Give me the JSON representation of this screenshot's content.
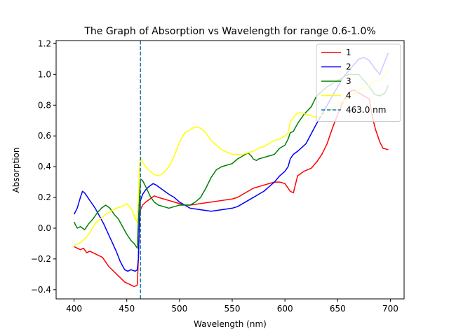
{
  "chart_data": {
    "type": "line",
    "title": "The Graph of Absorption vs Wavelength  for range 0.6-1.0%",
    "xlabel": "Wavelength (nm)",
    "ylabel": "Absorption",
    "xlim": [
      383,
      713
    ],
    "ylim": [
      -0.46,
      1.22
    ],
    "xticks": [
      400,
      450,
      500,
      550,
      600,
      650,
      700
    ],
    "yticks": [
      -0.4,
      -0.2,
      0.0,
      0.2,
      0.4,
      0.6,
      0.8,
      1.0,
      1.2
    ],
    "ytick_labels": [
      "−0.4",
      "−0.2",
      "0.0",
      "0.2",
      "0.4",
      "0.6",
      "0.8",
      "1.0",
      "1.2"
    ],
    "grid": false,
    "legend_position": "top-right",
    "vline": {
      "x": 463.0,
      "label": "463.0 nm",
      "color": "#1f77b4",
      "style": "dashed"
    },
    "series": [
      {
        "name": "1",
        "color": "#ff0000",
        "x": [
          400,
          403,
          406,
          409,
          412,
          415,
          418,
          421,
          424,
          427,
          430,
          433,
          436,
          439,
          442,
          445,
          448,
          451,
          454,
          457,
          460,
          461,
          462,
          463,
          465,
          468,
          472,
          476,
          480,
          485,
          490,
          495,
          500,
          505,
          510,
          520,
          530,
          540,
          550,
          555,
          560,
          565,
          570,
          575,
          580,
          585,
          590,
          595,
          600,
          603,
          605,
          608,
          612,
          618,
          625,
          630,
          635,
          640,
          645,
          650,
          655,
          660,
          665,
          670,
          675,
          680,
          683,
          686,
          690,
          693,
          698
        ],
        "y": [
          -0.12,
          -0.13,
          -0.14,
          -0.13,
          -0.16,
          -0.15,
          -0.16,
          -0.17,
          -0.18,
          -0.19,
          -0.22,
          -0.25,
          -0.27,
          -0.29,
          -0.31,
          -0.33,
          -0.35,
          -0.36,
          -0.37,
          -0.38,
          -0.37,
          -0.2,
          0.05,
          0.12,
          0.15,
          0.17,
          0.19,
          0.21,
          0.2,
          0.19,
          0.18,
          0.17,
          0.16,
          0.15,
          0.15,
          0.16,
          0.17,
          0.18,
          0.19,
          0.2,
          0.22,
          0.24,
          0.26,
          0.27,
          0.28,
          0.29,
          0.3,
          0.3,
          0.29,
          0.26,
          0.24,
          0.23,
          0.34,
          0.37,
          0.39,
          0.43,
          0.48,
          0.55,
          0.65,
          0.74,
          0.82,
          0.88,
          0.9,
          0.88,
          0.86,
          0.84,
          0.72,
          0.64,
          0.56,
          0.52,
          0.51
        ]
      },
      {
        "name": "2",
        "color": "#0000ff",
        "x": [
          400,
          403,
          406,
          408,
          410,
          413,
          416,
          420,
          424,
          428,
          432,
          436,
          440,
          444,
          448,
          451,
          454,
          458,
          460,
          461,
          462,
          463,
          465,
          468,
          471,
          475,
          478,
          482,
          486,
          490,
          495,
          500,
          505,
          510,
          520,
          530,
          540,
          550,
          555,
          560,
          565,
          570,
          575,
          580,
          585,
          590,
          595,
          600,
          603,
          605,
          608,
          612,
          620,
          630,
          640,
          650,
          655,
          660,
          665,
          670,
          675,
          680,
          685,
          690,
          695,
          698
        ],
        "y": [
          0.09,
          0.13,
          0.2,
          0.24,
          0.23,
          0.2,
          0.17,
          0.13,
          0.08,
          0.03,
          -0.03,
          -0.09,
          -0.15,
          -0.22,
          -0.27,
          -0.28,
          -0.27,
          -0.28,
          -0.27,
          -0.2,
          0.05,
          0.18,
          0.22,
          0.25,
          0.27,
          0.29,
          0.28,
          0.26,
          0.24,
          0.22,
          0.2,
          0.17,
          0.15,
          0.13,
          0.12,
          0.11,
          0.12,
          0.13,
          0.14,
          0.16,
          0.18,
          0.2,
          0.22,
          0.24,
          0.27,
          0.3,
          0.34,
          0.37,
          0.4,
          0.45,
          0.48,
          0.5,
          0.55,
          0.68,
          0.8,
          0.92,
          0.98,
          1.02,
          1.06,
          1.1,
          1.11,
          1.09,
          1.04,
          1.0,
          1.09,
          1.14
        ]
      },
      {
        "name": "3",
        "color": "#008000",
        "x": [
          400,
          403,
          406,
          410,
          414,
          418,
          422,
          426,
          430,
          434,
          438,
          442,
          446,
          450,
          454,
          457,
          460,
          461,
          462,
          463,
          465,
          468,
          472,
          476,
          480,
          485,
          490,
          495,
          500,
          505,
          510,
          515,
          520,
          525,
          530,
          535,
          540,
          550,
          555,
          560,
          565,
          568,
          570,
          573,
          575,
          580,
          585,
          590,
          595,
          600,
          603,
          605,
          608,
          612,
          618,
          625,
          630,
          640,
          650,
          660,
          670,
          680,
          685,
          690,
          695,
          698
        ],
        "y": [
          0.04,
          0.0,
          0.01,
          -0.01,
          0.03,
          0.06,
          0.1,
          0.13,
          0.15,
          0.13,
          0.09,
          0.06,
          0.01,
          -0.04,
          -0.08,
          -0.1,
          -0.13,
          0.05,
          0.2,
          0.32,
          0.31,
          0.27,
          0.21,
          0.17,
          0.15,
          0.14,
          0.13,
          0.14,
          0.15,
          0.15,
          0.15,
          0.17,
          0.2,
          0.26,
          0.33,
          0.38,
          0.4,
          0.42,
          0.45,
          0.47,
          0.49,
          0.47,
          0.45,
          0.44,
          0.45,
          0.46,
          0.47,
          0.48,
          0.52,
          0.54,
          0.58,
          0.62,
          0.63,
          0.68,
          0.74,
          0.79,
          0.86,
          0.92,
          0.96,
          1.0,
          1.0,
          0.92,
          0.87,
          0.86,
          0.88,
          0.93
        ]
      },
      {
        "name": "4",
        "color": "#ffff00",
        "x": [
          400,
          405,
          410,
          415,
          420,
          425,
          430,
          435,
          440,
          445,
          450,
          455,
          458,
          460,
          461,
          462,
          463,
          465,
          468,
          472,
          476,
          480,
          485,
          490,
          495,
          500,
          505,
          510,
          515,
          520,
          525,
          530,
          540,
          550,
          555,
          560,
          565,
          570,
          575,
          580,
          585,
          590,
          595,
          600,
          603,
          605,
          608,
          612,
          616,
          620,
          625,
          630,
          640,
          650,
          660,
          670,
          680,
          685,
          690,
          695,
          698
        ],
        "y": [
          -0.11,
          -0.1,
          -0.07,
          -0.03,
          0.03,
          0.06,
          0.09,
          0.11,
          0.13,
          0.14,
          0.16,
          0.12,
          0.06,
          0.04,
          0.2,
          0.38,
          0.46,
          0.43,
          0.4,
          0.37,
          0.35,
          0.34,
          0.36,
          0.4,
          0.47,
          0.56,
          0.62,
          0.64,
          0.66,
          0.65,
          0.62,
          0.57,
          0.51,
          0.48,
          0.48,
          0.48,
          0.49,
          0.5,
          0.52,
          0.53,
          0.55,
          0.57,
          0.58,
          0.6,
          0.62,
          0.69,
          0.72,
          0.75,
          0.75,
          0.74,
          0.73,
          0.72,
          0.75,
          0.8,
          0.85,
          0.9,
          0.93,
          0.96,
          0.96,
          0.99,
          1.03
        ]
      }
    ]
  }
}
